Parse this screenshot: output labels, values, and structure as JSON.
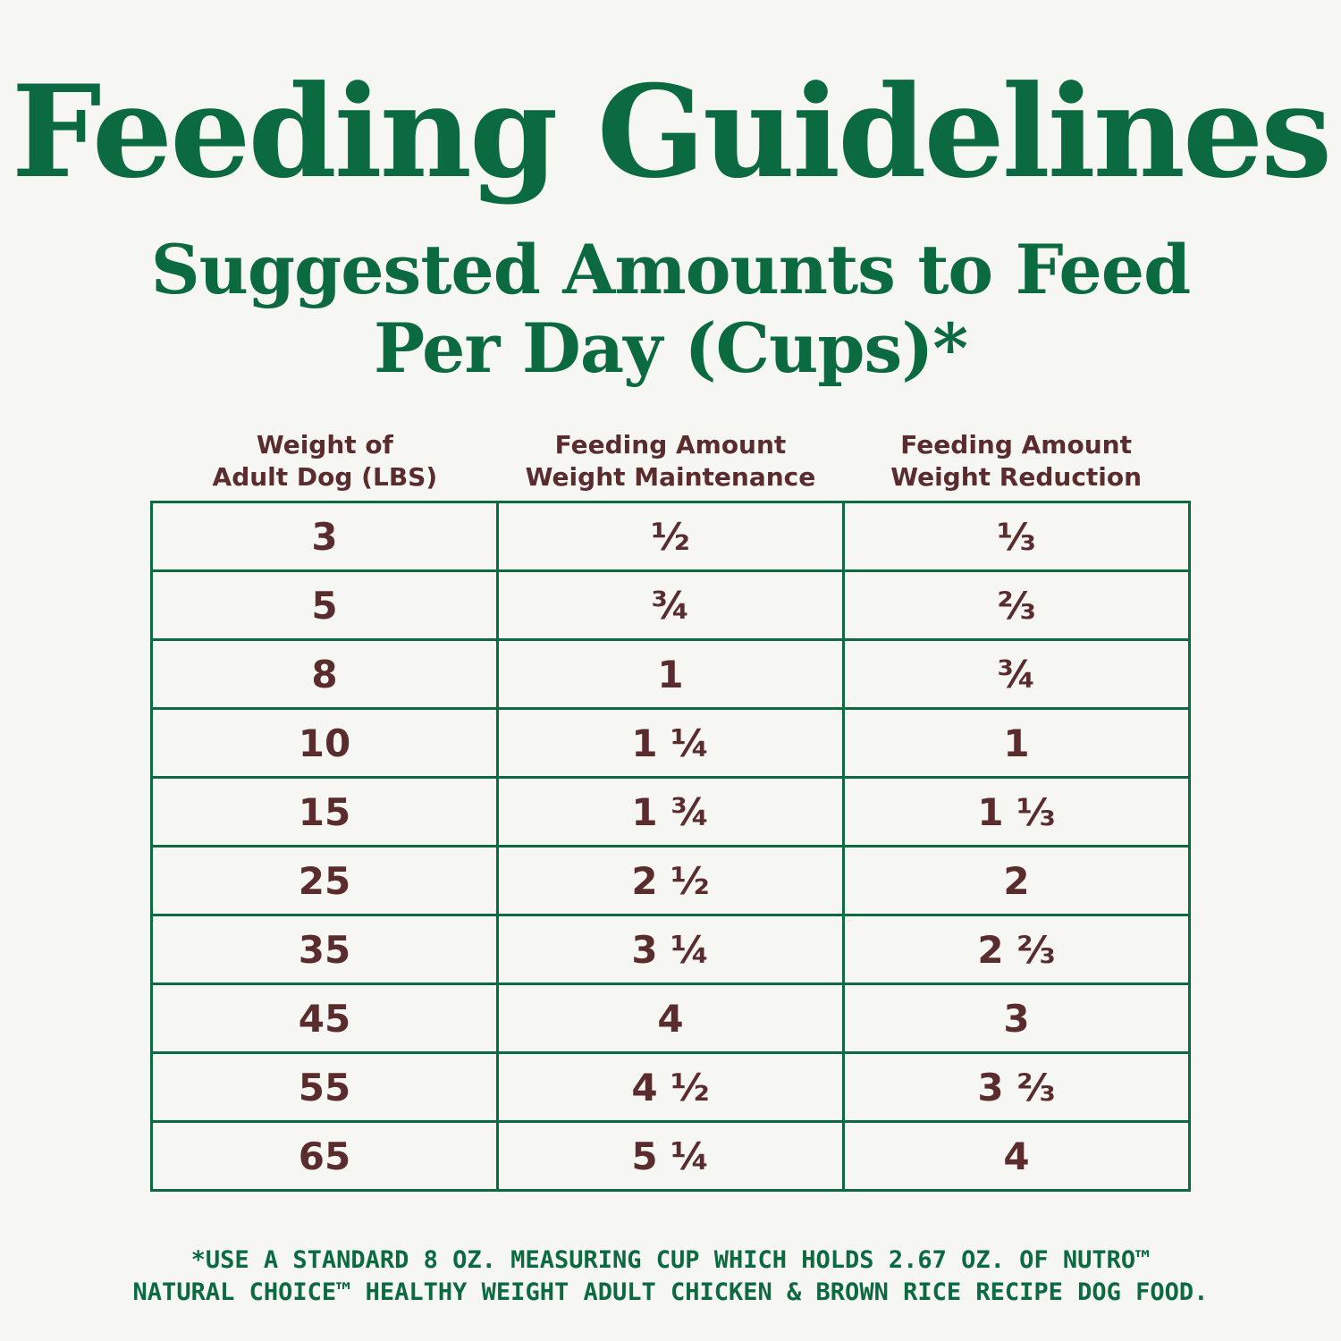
{
  "title": "Feeding Guidelines",
  "subtitle": {
    "line1": "Suggested Amounts to Feed",
    "line2": "Per Day (Cups)*"
  },
  "table": {
    "headers": [
      {
        "line1": "Weight of",
        "line2": "Adult Dog (LBS)"
      },
      {
        "line1": "Feeding Amount",
        "line2": "Weight Maintenance"
      },
      {
        "line1": "Feeding Amount",
        "line2": "Weight Reduction"
      }
    ],
    "rows": [
      [
        "3",
        "½",
        "⅓"
      ],
      [
        "5",
        "¾",
        "⅔"
      ],
      [
        "8",
        "1",
        "¾"
      ],
      [
        "10",
        "1 ¼",
        "1"
      ],
      [
        "15",
        "1 ¾",
        "1 ⅓"
      ],
      [
        "25",
        "2 ½",
        "2"
      ],
      [
        "35",
        "3 ¼",
        "2 ⅔"
      ],
      [
        "45",
        "4",
        "3"
      ],
      [
        "55",
        "4 ½",
        "3 ⅔"
      ],
      [
        "65",
        "5 ¼",
        "4"
      ]
    ]
  },
  "footnote": {
    "line1": "*USE A STANDARD 8 OZ. MEASURING CUP WHICH HOLDS 2.67 OZ. OF NUTRO™",
    "line2": "NATURAL CHOICE™ HEALTHY WEIGHT ADULT CHICKEN & BROWN RICE RECIPE DOG FOOD."
  },
  "colors": {
    "background": "#f6f6f2",
    "green": "#0b6a40",
    "maroon": "#5a2c2e"
  }
}
